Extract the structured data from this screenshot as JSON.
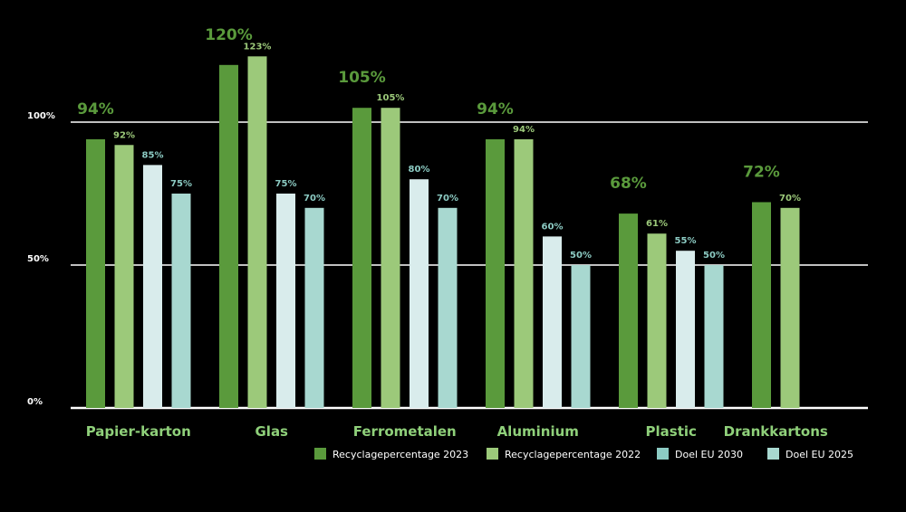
{
  "chart_data": {
    "type": "bar",
    "title": "",
    "xlabel": "",
    "ylabel": "",
    "ylim": [
      0,
      130
    ],
    "yticks": [
      {
        "value": 0,
        "label": "0%"
      },
      {
        "value": 50,
        "label": "50%"
      },
      {
        "value": 100,
        "label": "100%"
      }
    ],
    "grid": true,
    "legend_position": "bottom-right",
    "categories": [
      "Papier-karton",
      "Glas",
      "Ferrometalen",
      "Aluminium",
      "Plastic",
      "Drankkartons"
    ],
    "series": [
      {
        "name": "Recyclagepercentage 2023",
        "color": "#5a9a3c",
        "label_color": "#5a9a3c",
        "values": [
          94,
          120,
          105,
          94,
          68,
          72
        ],
        "labels": [
          "94%",
          "120%",
          "105%",
          "94%",
          "68%",
          "72%"
        ]
      },
      {
        "name": "Recyclagepercentage 2022",
        "color": "#9cc97a",
        "label_color": "#9cc97a",
        "values": [
          92,
          123,
          105,
          94,
          61,
          70
        ],
        "labels": [
          "92%",
          "123%",
          "105%",
          "94%",
          "61%",
          "70%"
        ]
      },
      {
        "name": "Doel EU 2030",
        "color": "#d9ecec",
        "label_color": "#8ccbc3",
        "values": [
          85,
          75,
          80,
          60,
          55,
          null
        ],
        "labels": [
          "85%",
          "75%",
          "80%",
          "60%",
          "55%",
          ""
        ]
      },
      {
        "name": "Doel EU 2025",
        "color": "#a8d8d0",
        "label_color": "#8ccbc3",
        "values": [
          75,
          70,
          70,
          50,
          50,
          null
        ],
        "labels": [
          "75%",
          "70%",
          "70%",
          "50%",
          "50%",
          ""
        ]
      }
    ],
    "legend_colors": [
      "#5a9a3c",
      "#9cc97a",
      "#8ccbc3",
      "#a8d8d0"
    ]
  }
}
